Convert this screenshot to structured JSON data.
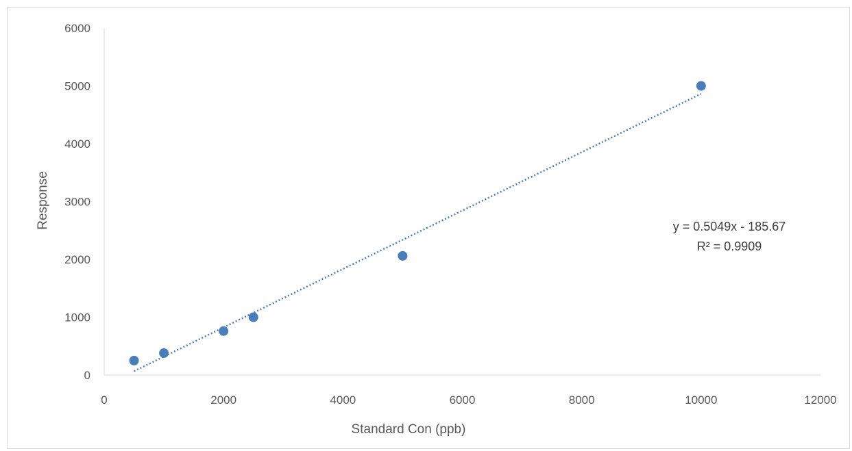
{
  "chart_data": {
    "type": "scatter",
    "xlabel": "Standard Con (ppb)",
    "ylabel": "Response",
    "xlim": [
      0,
      12000
    ],
    "ylim": [
      0,
      6000
    ],
    "x_ticks": [
      0,
      2000,
      4000,
      6000,
      8000,
      10000,
      12000
    ],
    "y_ticks": [
      0,
      1000,
      2000,
      3000,
      4000,
      5000,
      6000
    ],
    "x_tick_labels": [
      "0",
      "2000",
      "4000",
      "6000",
      "8000",
      "10000",
      "12000"
    ],
    "y_tick_labels": [
      "0",
      "1000",
      "2000",
      "3000",
      "4000",
      "5000",
      "6000"
    ],
    "grid": false,
    "series": [
      {
        "color": "#4a7ebb",
        "points": [
          {
            "x": 500,
            "y": 250
          },
          {
            "x": 1000,
            "y": 380
          },
          {
            "x": 2000,
            "y": 760
          },
          {
            "x": 2500,
            "y": 1000
          },
          {
            "x": 5000,
            "y": 2060
          },
          {
            "x": 10000,
            "y": 5000
          }
        ]
      }
    ],
    "trendline": {
      "type": "linear",
      "slope": 0.5049,
      "intercept": -185.67,
      "x_range": [
        500,
        10000
      ],
      "style": "dotted",
      "color": "#4a7ebb",
      "equation_label": "y = 0.5049x - 185.67",
      "r2_label": "R² = 0.9909"
    }
  }
}
